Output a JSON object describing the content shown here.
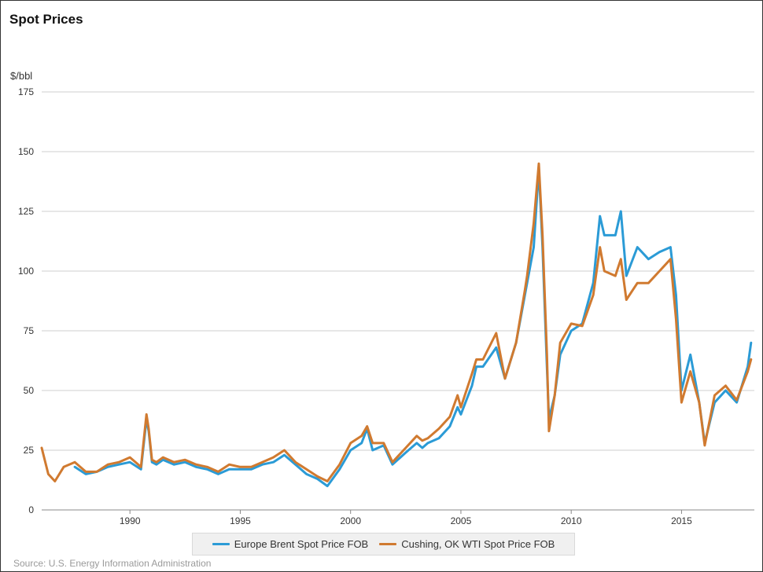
{
  "chart_data": {
    "type": "line",
    "title": "Spot Prices",
    "ylabel": "$/bbl",
    "source": "Source: U.S. Energy Information Administration",
    "ylim": [
      0,
      175
    ],
    "xlim": [
      1986.0,
      2018.3
    ],
    "y_ticks": [
      "0",
      "25",
      "50",
      "75",
      "100",
      "125",
      "150",
      "175"
    ],
    "x_ticks": [
      "1990",
      "1995",
      "2000",
      "2005",
      "2010",
      "2015"
    ],
    "grid": true,
    "legend_placement": "bottom-center",
    "series": [
      {
        "name": "Europe Brent Spot Price FOB",
        "color": "#2b9bd6",
        "x": [
          1987.5,
          1988.0,
          1988.5,
          1989.0,
          1989.5,
          1990.0,
          1990.5,
          1990.75,
          1990.85,
          1991.0,
          1991.2,
          1991.5,
          1992.0,
          1992.5,
          1993.0,
          1993.5,
          1994.0,
          1994.5,
          1995.0,
          1995.5,
          1996.0,
          1996.5,
          1997.0,
          1997.5,
          1998.0,
          1998.5,
          1998.95,
          1999.5,
          2000.0,
          2000.5,
          2000.75,
          2001.0,
          2001.5,
          2001.9,
          2002.5,
          2003.0,
          2003.25,
          2003.5,
          2004.0,
          2004.5,
          2004.85,
          2005.0,
          2005.5,
          2005.7,
          2006.0,
          2006.6,
          2007.0,
          2007.5,
          2007.9,
          2008.0,
          2008.3,
          2008.53,
          2008.7,
          2008.9,
          2008.99,
          2009.25,
          2009.5,
          2010.0,
          2010.5,
          2011.0,
          2011.3,
          2011.5,
          2012.0,
          2012.25,
          2012.5,
          2013.0,
          2013.5,
          2014.0,
          2014.5,
          2014.75,
          2015.0,
          2015.4,
          2015.8,
          2016.05,
          2016.5,
          2017.0,
          2017.5,
          2018.0,
          2018.15
        ],
        "values": [
          18,
          15,
          16,
          18,
          19,
          20,
          17,
          38,
          33,
          20,
          19,
          21,
          19,
          20,
          18,
          17,
          15,
          17,
          17,
          17,
          19,
          20,
          23,
          19,
          15,
          13,
          10,
          17,
          25,
          28,
          34,
          25,
          27,
          19,
          24,
          28,
          26,
          28,
          30,
          35,
          43,
          40,
          52,
          60,
          60,
          68,
          55,
          70,
          90,
          95,
          110,
          143,
          110,
          60,
          38,
          48,
          65,
          75,
          78,
          95,
          123,
          115,
          115,
          125,
          98,
          110,
          105,
          108,
          110,
          90,
          50,
          65,
          45,
          28,
          45,
          50,
          45,
          60,
          70
        ]
      },
      {
        "name": "Cushing, OK WTI Spot Price FOB",
        "color": "#d07a30",
        "x": [
          1986.0,
          1986.3,
          1986.6,
          1987.0,
          1987.5,
          1988.0,
          1988.5,
          1989.0,
          1989.5,
          1990.0,
          1990.5,
          1990.75,
          1990.85,
          1991.0,
          1991.2,
          1991.5,
          1992.0,
          1992.5,
          1993.0,
          1993.5,
          1994.0,
          1994.5,
          1995.0,
          1995.5,
          1996.0,
          1996.5,
          1997.0,
          1997.5,
          1998.0,
          1998.5,
          1998.95,
          1999.5,
          2000.0,
          2000.5,
          2000.75,
          2001.0,
          2001.5,
          2001.9,
          2002.5,
          2003.0,
          2003.25,
          2003.5,
          2004.0,
          2004.5,
          2004.85,
          2005.0,
          2005.5,
          2005.7,
          2006.0,
          2006.6,
          2007.0,
          2007.5,
          2007.9,
          2008.0,
          2008.3,
          2008.53,
          2008.7,
          2008.9,
          2008.99,
          2009.25,
          2009.5,
          2010.0,
          2010.5,
          2011.0,
          2011.3,
          2011.5,
          2012.0,
          2012.25,
          2012.5,
          2013.0,
          2013.5,
          2014.0,
          2014.5,
          2014.75,
          2015.0,
          2015.4,
          2015.8,
          2016.05,
          2016.5,
          2017.0,
          2017.5,
          2018.0,
          2018.15
        ],
        "values": [
          26,
          15,
          12,
          18,
          20,
          16,
          16,
          19,
          20,
          22,
          18,
          40,
          34,
          21,
          20,
          22,
          20,
          21,
          19,
          18,
          16,
          19,
          18,
          18,
          20,
          22,
          25,
          20,
          17,
          14,
          12,
          19,
          28,
          31,
          35,
          28,
          28,
          20,
          26,
          31,
          29,
          30,
          34,
          39,
          48,
          43,
          57,
          63,
          63,
          74,
          55,
          70,
          92,
          98,
          120,
          145,
          115,
          65,
          33,
          48,
          70,
          78,
          77,
          90,
          110,
          100,
          98,
          105,
          88,
          95,
          95,
          100,
          105,
          80,
          45,
          58,
          45,
          27,
          48,
          52,
          46,
          58,
          63
        ]
      }
    ]
  }
}
